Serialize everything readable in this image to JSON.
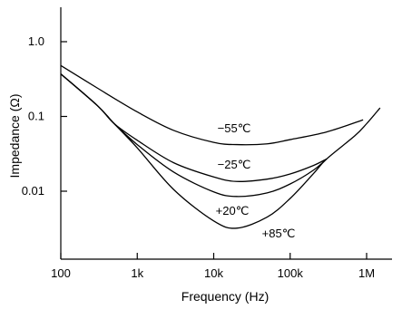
{
  "chart_data": {
    "type": "line",
    "title": "",
    "xlabel": "Frequency (Hz)",
    "ylabel": "Impedance (Ω)",
    "x_scale": "log",
    "y_scale": "log",
    "xlim": [
      100,
      2000000
    ],
    "ylim": [
      0.0013,
      3.0
    ],
    "grid": false,
    "x_ticks": [
      {
        "value": 100,
        "label": "100"
      },
      {
        "value": 1000,
        "label": "1k"
      },
      {
        "value": 10000,
        "label": "10k"
      },
      {
        "value": 100000,
        "label": "100k"
      },
      {
        "value": 1000000,
        "label": "1M"
      }
    ],
    "y_ticks": [
      {
        "value": 0.01,
        "label": "0.01"
      },
      {
        "value": 0.1,
        "label": "0.1"
      },
      {
        "value": 1.0,
        "label": "1.0"
      }
    ],
    "series": [
      {
        "name": "−55℃",
        "x": [
          100,
          300,
          1000,
          3000,
          10000,
          20000,
          50000,
          100000,
          300000,
          900000
        ],
        "y": [
          0.48,
          0.24,
          0.115,
          0.065,
          0.045,
          0.042,
          0.043,
          0.049,
          0.062,
          0.09
        ]
      },
      {
        "name": "−25℃",
        "x": [
          100,
          300,
          500,
          1000,
          3000,
          10000,
          20000,
          50000,
          100000,
          200000,
          300000
        ],
        "y": [
          0.37,
          0.14,
          0.08,
          0.048,
          0.024,
          0.0155,
          0.0135,
          0.0145,
          0.017,
          0.022,
          0.027
        ]
      },
      {
        "name": "+20℃",
        "x": [
          100,
          300,
          500,
          1000,
          3000,
          10000,
          20000,
          50000,
          100000,
          200000,
          300000
        ],
        "y": [
          0.37,
          0.14,
          0.08,
          0.042,
          0.018,
          0.0098,
          0.0085,
          0.0095,
          0.0125,
          0.019,
          0.027
        ]
      },
      {
        "name": "+85℃",
        "x": [
          100,
          300,
          500,
          1000,
          3000,
          10000,
          20000,
          50000,
          100000,
          200000,
          300000,
          700000,
          1000000,
          1500000
        ],
        "y": [
          0.37,
          0.14,
          0.08,
          0.038,
          0.0105,
          0.004,
          0.0032,
          0.0045,
          0.008,
          0.017,
          0.027,
          0.055,
          0.08,
          0.13
        ]
      }
    ],
    "annotations": [
      {
        "text": "−55℃",
        "series": "−55℃"
      },
      {
        "text": "−25℃",
        "series": "−25℃"
      },
      {
        "text": "+20℃",
        "series": "+20℃"
      },
      {
        "text": "+85℃",
        "series": "+85℃"
      }
    ]
  }
}
